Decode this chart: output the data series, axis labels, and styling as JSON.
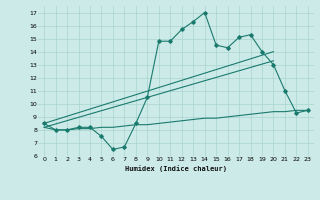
{
  "xlabel": "Humidex (Indice chaleur)",
  "bg_color": "#cceae7",
  "grid_color": "#aad4d0",
  "line_color": "#1a7a6e",
  "xlim": [
    -0.5,
    23.5
  ],
  "ylim": [
    6,
    17.5
  ],
  "xticks": [
    0,
    1,
    2,
    3,
    4,
    5,
    6,
    7,
    8,
    9,
    10,
    11,
    12,
    13,
    14,
    15,
    16,
    17,
    18,
    19,
    20,
    21,
    22,
    23
  ],
  "yticks": [
    6,
    7,
    8,
    9,
    10,
    11,
    12,
    13,
    14,
    15,
    16,
    17
  ],
  "line1_x": [
    0,
    1,
    2,
    3,
    4,
    5,
    6,
    7,
    8,
    9,
    10,
    11,
    12,
    13,
    14,
    15,
    16,
    17,
    18,
    19,
    20,
    21,
    22,
    23
  ],
  "line1_y": [
    8.5,
    8.0,
    8.0,
    8.2,
    8.2,
    7.5,
    6.5,
    6.7,
    8.5,
    10.5,
    14.8,
    14.8,
    15.7,
    16.3,
    17.0,
    14.5,
    14.3,
    15.1,
    15.3,
    14.0,
    13.0,
    11.0,
    9.3,
    9.5
  ],
  "line2_x": [
    0,
    20
  ],
  "line2_y": [
    8.5,
    14.0
  ],
  "line3_x": [
    0,
    20
  ],
  "line3_y": [
    8.2,
    13.3
  ],
  "line4_x": [
    0,
    1,
    2,
    3,
    4,
    5,
    6,
    7,
    8,
    9,
    10,
    11,
    12,
    13,
    14,
    15,
    16,
    17,
    18,
    19,
    20,
    21,
    22,
    23
  ],
  "line4_y": [
    8.2,
    8.0,
    8.0,
    8.1,
    8.1,
    8.2,
    8.2,
    8.3,
    8.4,
    8.4,
    8.5,
    8.6,
    8.7,
    8.8,
    8.9,
    8.9,
    9.0,
    9.1,
    9.2,
    9.3,
    9.4,
    9.4,
    9.5,
    9.5
  ],
  "figwidth": 3.2,
  "figheight": 2.0,
  "dpi": 100
}
